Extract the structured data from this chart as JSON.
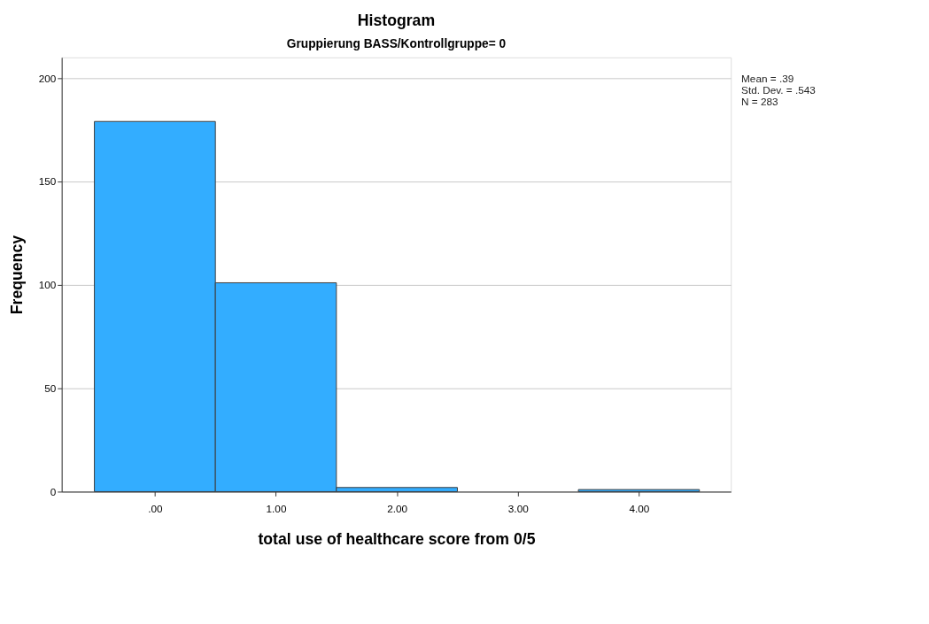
{
  "chart_data": {
    "type": "histogram",
    "title": "Histogram",
    "subtitle": "Gruppierung BASS/Kontrollgruppe= 0",
    "xlabel": "total use of healthcare score from 0/5",
    "ylabel": "Frequency",
    "bins": [
      -0.5,
      0.5,
      1.5,
      2.5,
      3.5,
      4.5
    ],
    "values": [
      179,
      101,
      2,
      0,
      1
    ],
    "color": "#33adff",
    "xlim": [
      -0.77,
      4.76
    ],
    "xticks": [
      {
        "value": 0,
        "label": ".00"
      },
      {
        "value": 1,
        "label": "1.00"
      },
      {
        "value": 2,
        "label": "2.00"
      },
      {
        "value": 3,
        "label": "3.00"
      },
      {
        "value": 4,
        "label": "4.00"
      }
    ],
    "ylim": [
      0,
      210
    ],
    "yticks": [
      0,
      50,
      100,
      150,
      200
    ],
    "grid": "y",
    "annotations": [
      "Mean = .39",
      "Std. Dev. = .543",
      "N = 283"
    ]
  }
}
